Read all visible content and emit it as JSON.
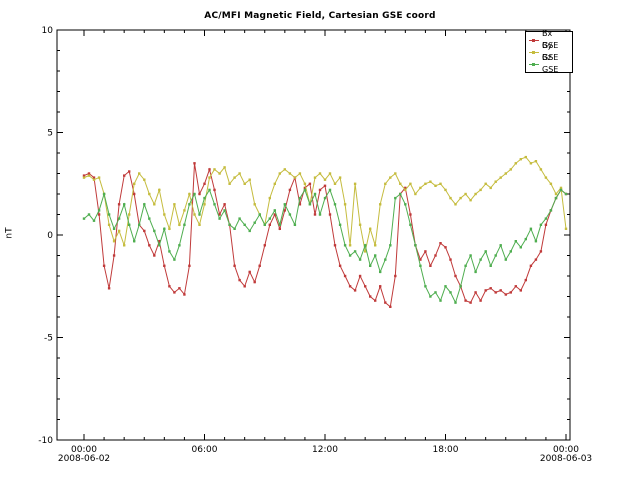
{
  "chart_data": {
    "type": "line",
    "title": "AC/MFI Magnetic Field, Cartesian GSE coord",
    "ylabel": "nT",
    "ylim": [
      -10,
      10
    ],
    "y_major_ticks": [
      -10,
      -5,
      0,
      5,
      10
    ],
    "y_minor_step": 1,
    "x_hours_start": 0,
    "x_hours_step": 0.25,
    "x_hours_range": [
      0,
      24
    ],
    "x_tick_hours": [
      0,
      6,
      12,
      18,
      24
    ],
    "x_tick_labels": [
      "00:00",
      "06:00",
      "12:00",
      "18:00",
      "00:00"
    ],
    "x_minor_step_hours": 1,
    "x_start_date": "2008-06-02",
    "x_end_date": "2008-06-03",
    "grid": false,
    "legend_position": "top-right",
    "frame_color": "#000000",
    "series": [
      {
        "name": "Bx GSE",
        "color": "#c03a3a",
        "values": [
          2.9,
          3.0,
          2.8,
          1.0,
          -1.5,
          -2.6,
          -1.0,
          1.5,
          2.9,
          3.1,
          2.0,
          0.5,
          0.2,
          -0.5,
          -1.0,
          -0.3,
          -1.5,
          -2.5,
          -2.8,
          -2.6,
          -2.9,
          -1.5,
          3.5,
          2.0,
          2.5,
          3.2,
          2.2,
          1.0,
          1.5,
          0.5,
          -1.5,
          -2.2,
          -2.5,
          -1.8,
          -2.3,
          -1.5,
          -0.5,
          0.5,
          1.0,
          0.3,
          1.2,
          2.2,
          2.8,
          1.5,
          2.3,
          2.5,
          1.0,
          2.2,
          2.4,
          1.0,
          -0.5,
          -1.5,
          -2.0,
          -2.5,
          -2.7,
          -2.0,
          -2.5,
          -3.0,
          -3.2,
          -2.5,
          -3.3,
          -3.5,
          -2.0,
          2.0,
          2.3,
          1.0,
          -0.5,
          -1.2,
          -0.8,
          -1.5,
          -1.0,
          -0.4,
          -0.6,
          -1.2,
          -2.0,
          -2.5,
          -3.2,
          -3.3,
          -2.8,
          -3.2,
          -2.7,
          -2.6,
          -2.8,
          -2.7,
          -2.9,
          -2.8,
          -2.5,
          -2.7,
          -2.2,
          -1.5,
          -1.2,
          -0.8,
          0.5,
          1.2,
          1.8,
          2.2,
          2.0
        ]
      },
      {
        "name": "By GSE",
        "color": "#c5bc3e",
        "values": [
          2.8,
          2.9,
          2.7,
          2.8,
          2.0,
          0.5,
          -0.3,
          0.2,
          -0.5,
          1.0,
          2.5,
          3.0,
          2.7,
          2.0,
          1.5,
          2.2,
          1.0,
          0.3,
          1.5,
          0.5,
          1.2,
          2.0,
          1.0,
          0.5,
          1.5,
          2.8,
          3.2,
          3.0,
          3.3,
          2.5,
          2.8,
          3.0,
          2.5,
          2.7,
          1.5,
          1.0,
          0.5,
          1.8,
          2.5,
          3.0,
          3.2,
          3.0,
          2.8,
          3.0,
          2.5,
          1.5,
          2.8,
          3.0,
          2.7,
          3.0,
          2.5,
          2.8,
          1.5,
          -0.5,
          2.5,
          0.5,
          -0.8,
          0.3,
          -0.5,
          1.5,
          2.5,
          2.8,
          3.0,
          2.5,
          2.2,
          2.5,
          2.0,
          2.3,
          2.5,
          2.6,
          2.4,
          2.5,
          2.2,
          1.8,
          1.5,
          1.8,
          2.0,
          1.7,
          2.0,
          2.2,
          2.5,
          2.3,
          2.6,
          2.8,
          3.0,
          3.2,
          3.5,
          3.7,
          3.8,
          3.5,
          3.6,
          3.2,
          2.8,
          2.5,
          2.0,
          2.3,
          0.3
        ]
      },
      {
        "name": "Bz GSE",
        "color": "#4fae50",
        "values": [
          0.8,
          1.0,
          0.7,
          1.2,
          2.0,
          1.0,
          0.3,
          0.8,
          1.5,
          0.5,
          -0.3,
          0.5,
          1.5,
          0.8,
          0.2,
          -0.5,
          0.3,
          -0.8,
          -1.2,
          -0.5,
          0.5,
          1.5,
          2.0,
          1.0,
          1.8,
          2.2,
          1.5,
          0.8,
          1.2,
          0.5,
          0.3,
          0.8,
          0.5,
          0.2,
          0.6,
          1.0,
          0.5,
          0.8,
          1.2,
          0.5,
          1.5,
          1.0,
          0.5,
          1.8,
          2.2,
          1.5,
          2.0,
          1.0,
          1.8,
          2.2,
          1.5,
          0.5,
          -0.5,
          -1.0,
          -0.8,
          -1.2,
          -0.5,
          -1.5,
          -1.0,
          -1.8,
          -1.2,
          -0.5,
          1.8,
          2.0,
          1.5,
          0.5,
          -0.5,
          -1.5,
          -2.5,
          -3.0,
          -2.8,
          -3.2,
          -2.5,
          -2.8,
          -3.3,
          -2.5,
          -1.5,
          -1.0,
          -1.8,
          -1.2,
          -0.8,
          -1.5,
          -1.0,
          -0.5,
          -1.2,
          -0.8,
          -0.3,
          -0.6,
          -0.2,
          0.3,
          -0.3,
          0.5,
          0.8,
          1.2,
          1.8,
          2.2,
          2.0
        ]
      }
    ]
  }
}
